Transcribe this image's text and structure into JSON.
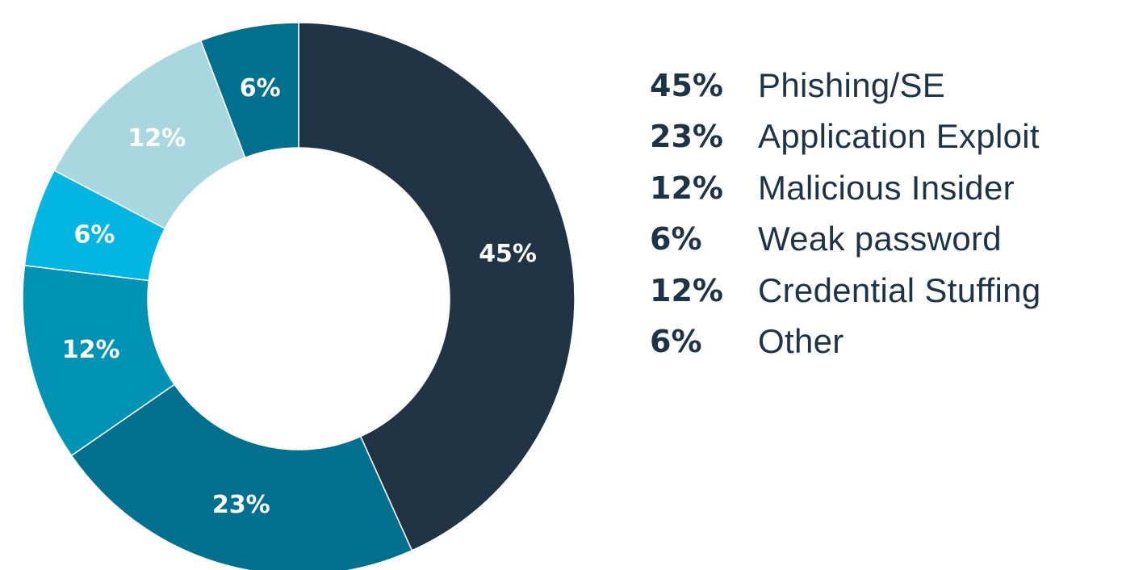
{
  "chart_data": {
    "type": "pie",
    "donut": true,
    "title": "",
    "categories": [
      "Phishing/SE",
      "Application Exploit",
      "Credential Stuffing",
      "Weak password",
      "Malicious Insider",
      "Other"
    ],
    "values": [
      45,
      23,
      12,
      6,
      12,
      6
    ],
    "slice_labels": [
      "45%",
      "23%",
      "12%",
      "6%",
      "12%",
      "6%"
    ],
    "colors": [
      "#203446",
      "#01708f",
      "#0193b4",
      "#02b6e1",
      "#a9d7df",
      "#01708f"
    ],
    "legend": {
      "placement": "right",
      "entries": [
        {
          "value": "45%",
          "label": "Phishing/SE"
        },
        {
          "value": "23%",
          "label": "Application Exploit"
        },
        {
          "value": "12%",
          "label": "Malicious Insider"
        },
        {
          "value": "6%",
          "label": "Weak password"
        },
        {
          "value": "12%",
          "label": "Credential Stuffing"
        },
        {
          "value": "6%",
          "label": "Other"
        }
      ]
    }
  }
}
